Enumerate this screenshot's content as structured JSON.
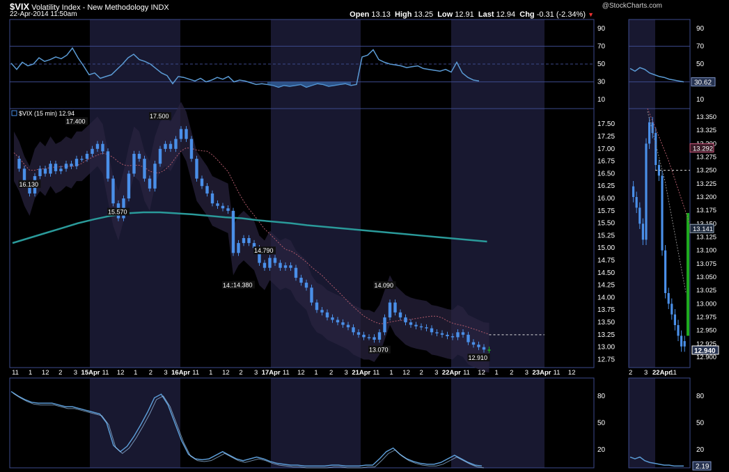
{
  "header": {
    "symbol": "$VIX",
    "name": "Volatility Index - New Methodology",
    "exchange": "INDX",
    "datetime": "22-Apr-2014 11:50am",
    "brand": "@StockCharts.com",
    "open_label": "Open",
    "open": "13.13",
    "high_label": "High",
    "high": "13.25",
    "low_label": "Low",
    "low": "12.91",
    "last_label": "Last",
    "last": "12.94",
    "chg_label": "Chg",
    "chg": "-0.31 (-2.34%)",
    "down_arrow": "▼"
  },
  "colors": {
    "bg": "#000000",
    "session_shade": "#181830",
    "panel_border": "#3c4a8c",
    "candle": "#4a8fe8",
    "last_bar": "#1ea91e",
    "ma_long": "#2a9a9a",
    "ma_short": "#b05a6a",
    "osc_line": "#5b9bd5",
    "band_fill": "#2a2440"
  },
  "chart_data": [
    {
      "type": "line",
      "panel": "rsi",
      "yticks": [
        90,
        70,
        50,
        30,
        10
      ],
      "ylim": [
        0,
        100
      ],
      "current_label": "30.62",
      "x": [
        0,
        8,
        16,
        24,
        32,
        40,
        48,
        56,
        64,
        72,
        80,
        88,
        96,
        104,
        112,
        120,
        128,
        136,
        144,
        152,
        160,
        168,
        176,
        184,
        192,
        200,
        208,
        216,
        224,
        232,
        240,
        248,
        256,
        264,
        272,
        280,
        288,
        296,
        304,
        312,
        320,
        328,
        336,
        344,
        352,
        360,
        368,
        376,
        384,
        392,
        400,
        408,
        416,
        424,
        432,
        440,
        448,
        456,
        464,
        472,
        480,
        488,
        496,
        504,
        512,
        520,
        528,
        536,
        544,
        552,
        560,
        568,
        576,
        584,
        592,
        600,
        608,
        616,
        624,
        632,
        640,
        648,
        656,
        664,
        672
      ],
      "values": [
        51,
        44,
        52,
        48,
        50,
        57,
        53,
        55,
        58,
        56,
        60,
        68,
        57,
        48,
        38,
        40,
        34,
        36,
        38,
        44,
        50,
        57,
        61,
        55,
        53,
        50,
        45,
        40,
        37,
        28,
        36,
        35,
        33,
        31,
        34,
        30,
        32,
        35,
        33,
        36,
        30,
        32,
        31,
        29,
        27,
        28,
        27,
        26,
        24,
        26,
        25,
        26,
        27,
        24,
        26,
        28,
        27,
        25,
        26,
        27,
        28,
        26,
        27,
        58,
        60,
        66,
        55,
        52,
        50,
        49,
        48,
        46,
        47,
        48,
        45,
        44,
        43,
        42,
        44,
        41,
        52,
        40,
        35,
        32,
        31
      ]
    },
    {
      "type": "candlestick",
      "panel": "price",
      "legend": "$VIX (15 min) 12.94",
      "yticks": [
        "17.50",
        "17.25",
        "17.00",
        "16.75",
        "16.50",
        "16.25",
        "16.00",
        "15.75",
        "15.50",
        "15.25",
        "15.00",
        "14.75",
        "14.50",
        "14.25",
        "14.00",
        "13.75",
        "13.50",
        "13.25",
        "13.00",
        "12.75"
      ],
      "ylim": [
        12.7,
        17.7
      ],
      "price_path": [
        16.8,
        16.6,
        16.3,
        16.1,
        16.45,
        16.6,
        16.5,
        16.7,
        16.55,
        16.6,
        16.7,
        16.65,
        16.8,
        16.8,
        16.9,
        17.0,
        17.1,
        16.95,
        16.4,
        15.9,
        15.6,
        16.0,
        16.5,
        16.9,
        16.8,
        16.4,
        16.2,
        16.7,
        17.0,
        17.1,
        17.0,
        17.2,
        17.4,
        17.2,
        16.8,
        16.4,
        16.25,
        16.1,
        15.9,
        15.85,
        15.8,
        15.75,
        14.9,
        15.1,
        15.2,
        15.1,
        15.0,
        14.7,
        14.6,
        14.8,
        14.7,
        14.6,
        14.65,
        14.6,
        14.4,
        14.3,
        14.2,
        13.9,
        13.75,
        13.7,
        13.6,
        13.55,
        13.5,
        13.45,
        13.4,
        13.3,
        13.25,
        13.2,
        13.2,
        13.15,
        13.3,
        13.6,
        13.9,
        13.7,
        13.6,
        13.5,
        13.45,
        13.42,
        13.4,
        13.38,
        13.3,
        13.28,
        13.25,
        13.22,
        13.2,
        13.3,
        13.25,
        13.1,
        13.05,
        13.0,
        12.95,
        12.94
      ],
      "data_labels": [
        {
          "text": "17.400",
          "value": 17.4
        },
        {
          "text": "17.500",
          "value": 17.5
        },
        {
          "text": "16.130",
          "value": 16.13
        },
        {
          "text": "15.570",
          "value": 15.57
        },
        {
          "text": "14.790",
          "value": 14.79
        },
        {
          "text": "14.370",
          "value": 14.37
        },
        {
          "text": "14.380",
          "value": 14.38
        },
        {
          "text": "14.090",
          "value": 14.09
        },
        {
          "text": "13.070",
          "value": 13.07
        },
        {
          "text": "12.910",
          "value": 12.91
        }
      ],
      "ma_long": [
        15.1,
        15.2,
        15.3,
        15.4,
        15.5,
        15.58,
        15.65,
        15.7,
        15.72,
        15.72,
        15.7,
        15.68,
        15.65,
        15.62,
        15.6,
        15.56,
        15.53,
        15.5,
        15.46,
        15.43,
        15.4,
        15.37,
        15.34,
        15.31,
        15.28,
        15.25,
        15.22,
        15.19,
        15.16,
        15.13
      ],
      "last_label": "12.940",
      "dashed_level": 13.25
    },
    {
      "type": "line",
      "panel": "stochastic",
      "yticks": [
        80,
        50,
        20
      ],
      "ylim": [
        0,
        100
      ],
      "current_label": "2.19",
      "values": [
        85,
        80,
        76,
        73,
        72,
        72,
        72,
        70,
        68,
        68,
        66,
        64,
        62,
        60,
        50,
        25,
        18,
        24,
        35,
        48,
        62,
        78,
        82,
        70,
        50,
        30,
        15,
        10,
        9,
        10,
        14,
        18,
        14,
        10,
        8,
        10,
        12,
        10,
        7,
        5,
        4,
        3,
        3,
        2,
        2,
        2,
        2,
        3,
        3,
        2,
        2,
        2,
        3,
        3,
        10,
        18,
        22,
        15,
        10,
        7,
        5,
        4,
        4,
        6,
        10,
        14,
        10,
        6,
        3,
        2
      ]
    }
  ],
  "x_axis": {
    "main_labels": [
      "11",
      "1",
      "12",
      "2",
      "3",
      "15Apr",
      "11",
      "12",
      "1",
      "2",
      "3",
      "16Apr",
      "11",
      "1",
      "12",
      "2",
      "3",
      "17Apr",
      "11",
      "12",
      "1",
      "2",
      "3",
      "21Apr",
      "11",
      "1",
      "12",
      "2",
      "3",
      "22Apr",
      "11",
      "12",
      "1",
      "2",
      "3",
      "23Apr",
      "11",
      "12"
    ],
    "side_labels": [
      "2",
      "3",
      "22Apr",
      "11"
    ]
  },
  "side_price_ticks": [
    "13.350",
    "13.325",
    "13.300",
    "13.275",
    "13.250",
    "13.225",
    "13.200",
    "13.175",
    "13.150",
    "13.125",
    "13.100",
    "13.075",
    "13.050",
    "13.025",
    "13.000",
    "12.975",
    "12.950",
    "12.925",
    "12.900"
  ],
  "side_markers": {
    "ma_short": "13.292",
    "ma_long": "13.141",
    "last": "12.940"
  }
}
